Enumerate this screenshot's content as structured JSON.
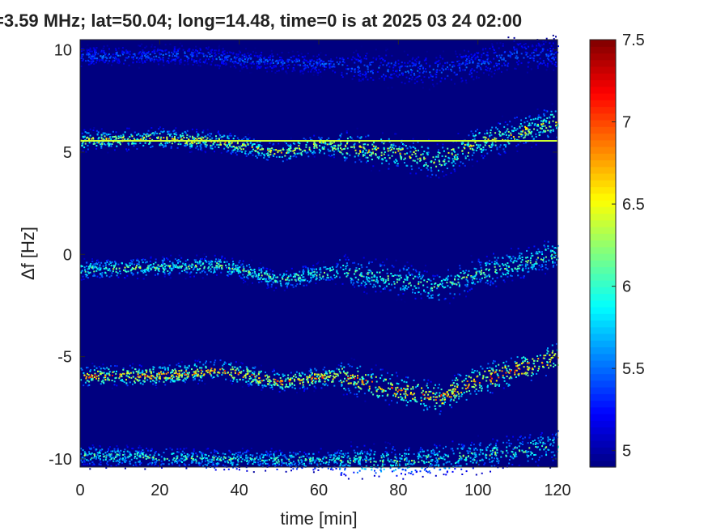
{
  "chart_data": {
    "type": "heatmap",
    "title": "=3.59 MHz;  lat=50.04; long=14.48, time=0 is at 2025 03 24 02:00",
    "xlabel": "time [min]",
    "ylabel": "Δf [Hz]",
    "xlim": [
      0,
      120
    ],
    "ylim": [
      -10.4,
      10.5
    ],
    "x_ticks": [
      "0",
      "20",
      "40",
      "60",
      "80",
      "100",
      "120"
    ],
    "y_ticks": [
      "-10",
      "-5",
      "0",
      "5",
      "10"
    ],
    "colorbar": {
      "range": [
        4.9,
        7.5
      ],
      "ticks": [
        "5",
        "5.5",
        "6",
        "6.5",
        "7",
        "7.5"
      ],
      "colormap": "jet"
    },
    "background_level": 4.9,
    "reference_line": {
      "df_hz": 5.55,
      "level": 6.4
    },
    "traces": [
      {
        "name": "",
        "df_hz_by_time": [
          [
            0,
            5.6
          ],
          [
            20,
            5.7
          ],
          [
            35,
            5.55
          ],
          [
            50,
            5.0
          ],
          [
            60,
            5.4
          ],
          [
            80,
            5.0
          ],
          [
            90,
            4.6
          ],
          [
            100,
            5.5
          ],
          [
            120,
            6.5
          ]
        ],
        "peak_level": 6.9
      },
      {
        "name": "",
        "df_hz_by_time": [
          [
            0,
            -0.7
          ],
          [
            20,
            -0.6
          ],
          [
            35,
            -0.5
          ],
          [
            50,
            -1.2
          ],
          [
            65,
            -0.8
          ],
          [
            80,
            -1.2
          ],
          [
            90,
            -1.6
          ],
          [
            100,
            -0.9
          ],
          [
            120,
            0.1
          ]
        ],
        "peak_level": 6.5
      },
      {
        "name": "",
        "df_hz_by_time": [
          [
            0,
            -5.9
          ],
          [
            20,
            -5.9
          ],
          [
            35,
            -5.6
          ],
          [
            50,
            -6.2
          ],
          [
            65,
            -5.9
          ],
          [
            80,
            -6.6
          ],
          [
            90,
            -7.0
          ],
          [
            100,
            -6.1
          ],
          [
            120,
            -5.0
          ]
        ],
        "peak_level": 7.3
      },
      {
        "name": "",
        "df_hz_by_time": [
          [
            0,
            -9.8
          ],
          [
            20,
            -9.9
          ],
          [
            40,
            -10.0
          ],
          [
            60,
            -10.0
          ],
          [
            80,
            -10.1
          ],
          [
            100,
            -9.8
          ],
          [
            120,
            -9.3
          ]
        ],
        "peak_level": 6.4
      },
      {
        "name": "",
        "df_hz_by_time": [
          [
            0,
            9.7
          ],
          [
            25,
            9.8
          ],
          [
            45,
            9.5
          ],
          [
            90,
            9.0
          ],
          [
            110,
            9.8
          ]
        ],
        "peak_level": 5.6
      }
    ]
  }
}
